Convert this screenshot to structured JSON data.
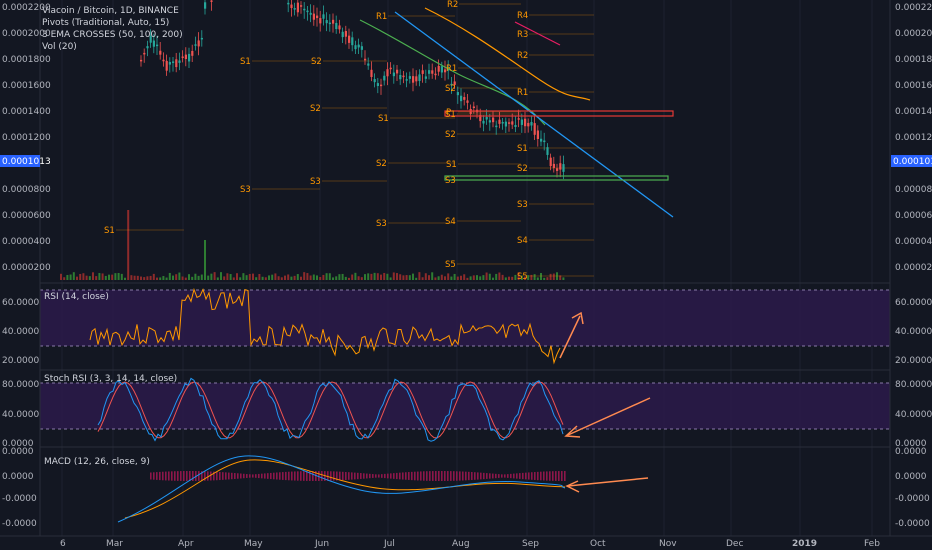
{
  "header": {
    "symbol": "Viacoin / Bitcoin, 1D, BINANCE",
    "pivots": "Pivots (Traditional, Auto, 15)",
    "ema": "3 EMA CROSSES (50, 100, 200)",
    "vol": "Vol (20)"
  },
  "colors": {
    "background": "#131722",
    "grid": "#1e2230",
    "up": "#26a69a",
    "down": "#ef5350",
    "pivot": "#ff9800",
    "ema_fast": "#4caf50",
    "ema_slow": "#ff9800",
    "ema_long": "#e91e63",
    "trendline": "#2196f3",
    "zone": "#4a2a7a",
    "rsi": "#ff9800",
    "stoch_k": "#2196f3",
    "stoch_d": "#ef5350",
    "macd": "#2196f3",
    "signal": "#ff9800",
    "current_price_bg": "#2962ff",
    "arrow": "#ff8a50",
    "support_box": "#4caf50",
    "resistance_box": "#e53935"
  },
  "price_axis": {
    "ticks": [
      "0.0002200",
      "0.0002000",
      "0.0001800",
      "0.0001600",
      "0.0001400",
      "0.0001200",
      "0.0000800",
      "0.0000600",
      "0.0000400",
      "0.0000200"
    ],
    "current": "0.0001013"
  },
  "pivot_labels": [
    "S1",
    "S1",
    "S2",
    "S2",
    "S1",
    "S3",
    "S1",
    "S3",
    "S2",
    "R2",
    "R1",
    "S4",
    "R4",
    "R3",
    "R2",
    "R1",
    "S5",
    "S1",
    "S2",
    "S3",
    "S4",
    "S5",
    "S2",
    "R1",
    "S1",
    "S2",
    "S3",
    "P",
    "S3"
  ],
  "rsi": {
    "title": "RSI (14, close)",
    "ticks": [
      "60.0000",
      "40.0000",
      "20.0000"
    ]
  },
  "stoch": {
    "title": "Stoch RSI (3, 3, 14, 14, close)",
    "ticks": [
      "80.0000",
      "40.0000",
      "0.0000"
    ]
  },
  "macd": {
    "title": "MACD (12, 26, close, 9)",
    "ticks": [
      "0.0000",
      "0.0000",
      "-0.0000",
      "-0.0000"
    ]
  },
  "time_axis": [
    "6",
    "Mar",
    "Apr",
    "May",
    "Jun",
    "Jul",
    "Aug",
    "Sep",
    "Oct",
    "Nov",
    "Dec",
    "2019",
    "Feb"
  ]
}
